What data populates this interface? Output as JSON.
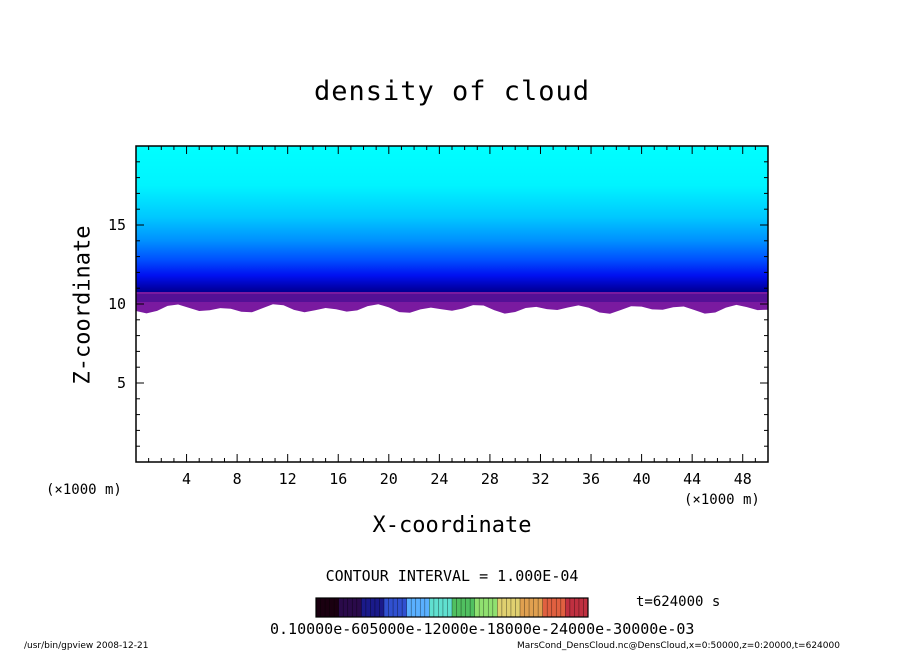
{
  "chart_data": {
    "type": "heatmap",
    "title": "density of cloud",
    "xlabel": "X-coordinate",
    "ylabel": "Z-coordinate",
    "x_unit": "(×1000 m)",
    "xlim": [
      0,
      50
    ],
    "ylim": [
      0,
      20
    ],
    "x_ticks": [
      4,
      8,
      12,
      16,
      20,
      24,
      28,
      32,
      36,
      40,
      44,
      48
    ],
    "y_ticks": [
      5,
      10,
      15
    ],
    "cloud_layer": {
      "base_z": 10,
      "top_z": 20
    },
    "contour_interval": "CONTOUR INTERVAL = 1.000E-04",
    "colorbar_labels": "0.10000e-605000e-12000e-18000e-24000e-30000e-03",
    "colorbar_colors": [
      "#1a0010",
      "#2a0a4a",
      "#1a1a8a",
      "#3050d0",
      "#5ab0ff",
      "#60e0d0",
      "#50c060",
      "#90e070",
      "#e0d070",
      "#e0a050",
      "#e06040",
      "#c03040"
    ]
  },
  "time_label": "t=624000 s",
  "footer_left": "/usr/bin/gpview   2008-12-21",
  "footer_right": "MarsCond_DensCloud.nc@DensCloud,x=0:50000,z=0:20000,t=624000"
}
